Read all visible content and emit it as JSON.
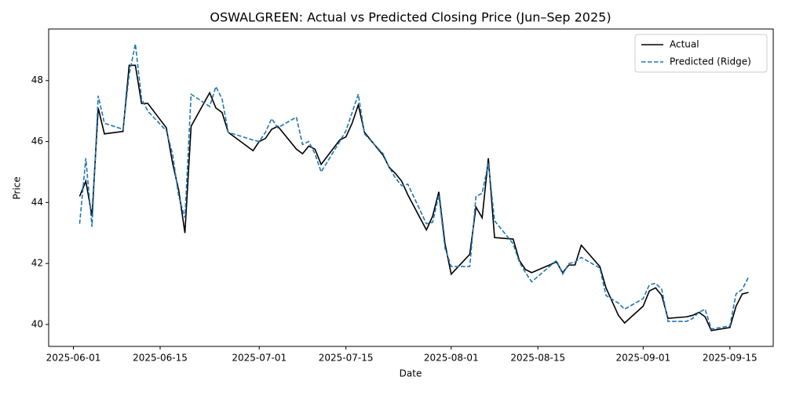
{
  "chart_data": {
    "type": "line",
    "title": "OSWALGREEN: Actual vs Predicted Closing Price (Jun–Sep 2025)",
    "x_label": "Date",
    "y_label": "Price",
    "x": [
      "2025-06-02",
      "2025-06-03",
      "2025-06-04",
      "2025-06-05",
      "2025-06-06",
      "2025-06-09",
      "2025-06-10",
      "2025-06-11",
      "2025-06-12",
      "2025-06-13",
      "2025-06-16",
      "2025-06-17",
      "2025-06-18",
      "2025-06-19",
      "2025-06-20",
      "2025-06-23",
      "2025-06-24",
      "2025-06-25",
      "2025-06-26",
      "2025-06-30",
      "2025-07-01",
      "2025-07-02",
      "2025-07-03",
      "2025-07-04",
      "2025-07-07",
      "2025-07-08",
      "2025-07-09",
      "2025-07-10",
      "2025-07-11",
      "2025-07-14",
      "2025-07-15",
      "2025-07-16",
      "2025-07-17",
      "2025-07-18",
      "2025-07-21",
      "2025-07-22",
      "2025-07-23",
      "2025-07-24",
      "2025-07-25",
      "2025-07-28",
      "2025-07-29",
      "2025-07-30",
      "2025-07-31",
      "2025-08-01",
      "2025-08-04",
      "2025-08-05",
      "2025-08-06",
      "2025-08-07",
      "2025-08-08",
      "2025-08-11",
      "2025-08-12",
      "2025-08-13",
      "2025-08-14",
      "2025-08-18",
      "2025-08-19",
      "2025-08-20",
      "2025-08-21",
      "2025-08-22",
      "2025-08-25",
      "2025-08-26",
      "2025-08-28",
      "2025-08-29",
      "2025-09-01",
      "2025-09-02",
      "2025-09-03",
      "2025-09-04",
      "2025-09-05",
      "2025-09-08",
      "2025-09-09",
      "2025-09-10",
      "2025-09-11",
      "2025-09-12",
      "2025-09-15",
      "2025-09-16",
      "2025-09-17",
      "2025-09-18"
    ],
    "series": [
      {
        "name": "Actual",
        "color": "#000000",
        "dash": false,
        "values": [
          44.2,
          44.7,
          43.55,
          47.1,
          46.25,
          46.33,
          48.5,
          48.5,
          47.25,
          47.25,
          46.45,
          45.3,
          44.4,
          43.0,
          46.5,
          47.6,
          47.1,
          46.95,
          46.3,
          45.7,
          46.0,
          46.1,
          46.4,
          46.5,
          45.75,
          45.6,
          45.85,
          45.75,
          45.25,
          46.05,
          46.15,
          46.6,
          47.2,
          46.3,
          45.55,
          45.15,
          44.95,
          44.7,
          44.25,
          43.1,
          43.55,
          44.35,
          42.65,
          41.65,
          42.3,
          43.85,
          43.5,
          45.45,
          42.85,
          42.8,
          42.1,
          41.8,
          41.7,
          42.05,
          41.7,
          41.95,
          41.95,
          42.6,
          41.9,
          41.2,
          40.3,
          40.05,
          40.6,
          41.1,
          41.2,
          40.95,
          40.2,
          40.25,
          40.3,
          40.4,
          40.25,
          39.8,
          39.9,
          40.6,
          41.0,
          41.05
        ]
      },
      {
        "name": "Predicted (Ridge)",
        "color": "#1f77b4",
        "dash": true,
        "values": [
          43.3,
          45.45,
          43.2,
          47.5,
          46.6,
          46.4,
          48.2,
          49.2,
          47.4,
          47.0,
          46.35,
          45.6,
          44.2,
          43.5,
          47.55,
          47.15,
          47.8,
          47.4,
          46.3,
          46.05,
          46.0,
          46.3,
          46.75,
          46.45,
          46.8,
          45.9,
          46.0,
          45.6,
          45.0,
          46.0,
          46.35,
          46.95,
          47.55,
          46.25,
          45.6,
          45.15,
          44.8,
          44.55,
          44.6,
          43.3,
          43.35,
          44.25,
          42.5,
          41.9,
          41.9,
          44.2,
          44.3,
          45.3,
          43.4,
          42.65,
          42.05,
          41.7,
          41.4,
          42.1,
          41.65,
          42.0,
          42.05,
          42.2,
          41.85,
          40.95,
          40.7,
          40.5,
          40.85,
          41.3,
          41.35,
          41.15,
          40.1,
          40.1,
          40.2,
          40.4,
          40.5,
          39.85,
          39.95,
          41.0,
          41.15,
          41.55
        ]
      }
    ],
    "xlim": [
      "2025-05-28",
      "2025-09-22"
    ],
    "xticks": [
      "2025-06-01",
      "2025-06-15",
      "2025-07-01",
      "2025-07-15",
      "2025-08-01",
      "2025-08-15",
      "2025-09-01",
      "2025-09-15"
    ],
    "ylim": [
      39.28,
      49.69
    ],
    "yticks": [
      40,
      42,
      44,
      46,
      48
    ],
    "legend": "upper right",
    "grid": false
  }
}
